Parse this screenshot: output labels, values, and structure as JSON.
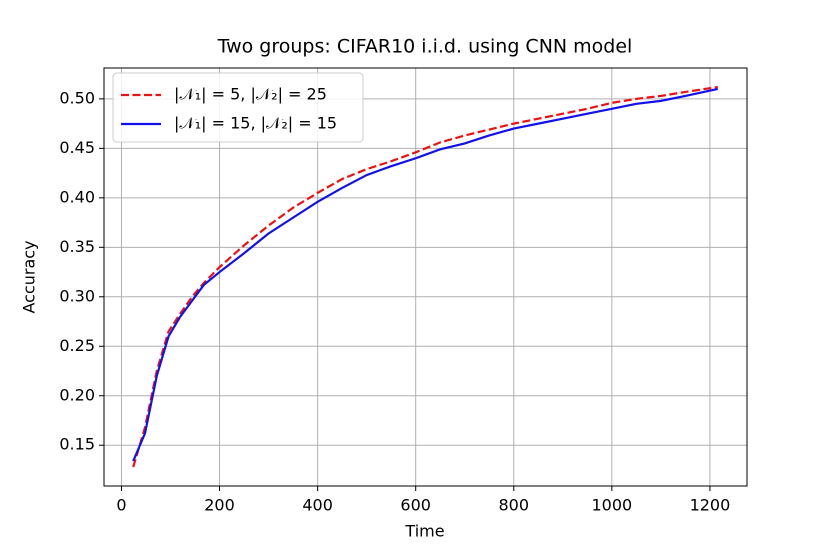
{
  "chart_data": {
    "type": "line",
    "title": "Two groups: CIFAR10 i.i.d. using CNN model",
    "xlabel": "Time",
    "ylabel": "Accuracy",
    "x": [
      24,
      48,
      72,
      96,
      120,
      144,
      168,
      200,
      250,
      300,
      350,
      400,
      450,
      500,
      550,
      600,
      650,
      700,
      750,
      800,
      850,
      900,
      950,
      1000,
      1050,
      1100,
      1150,
      1216
    ],
    "series": [
      {
        "name": "|𝒩₁| = 5, |𝒩₂| = 25",
        "color": "#ee1111",
        "dash": true,
        "values": [
          0.128,
          0.168,
          0.225,
          0.265,
          0.283,
          0.3,
          0.314,
          0.33,
          0.352,
          0.372,
          0.39,
          0.405,
          0.419,
          0.429,
          0.437,
          0.446,
          0.456,
          0.463,
          0.469,
          0.475,
          0.48,
          0.485,
          0.49,
          0.496,
          0.5,
          0.503,
          0.507,
          0.512
        ]
      },
      {
        "name": "|𝒩₁| = 15, |𝒩₂| = 15",
        "color": "#1111ee",
        "dash": false,
        "values": [
          0.134,
          0.162,
          0.22,
          0.26,
          0.28,
          0.296,
          0.312,
          0.325,
          0.344,
          0.364,
          0.38,
          0.396,
          0.41,
          0.423,
          0.432,
          0.44,
          0.449,
          0.455,
          0.463,
          0.47,
          0.475,
          0.48,
          0.485,
          0.49,
          0.495,
          0.498,
          0.503,
          0.51
        ]
      }
    ],
    "xlim": [
      -35.6,
      1275.6
    ],
    "xticks": [
      0,
      200,
      400,
      600,
      800,
      1000,
      1200
    ],
    "ylim": [
      0.1088,
      0.5312
    ],
    "yticks": [
      {
        "value": 0.15,
        "label": "0.15"
      },
      {
        "value": 0.2,
        "label": "0.20"
      },
      {
        "value": 0.25,
        "label": "0.25"
      },
      {
        "value": 0.3,
        "label": "0.30"
      },
      {
        "value": 0.35,
        "label": "0.35"
      },
      {
        "value": 0.4,
        "label": "0.40"
      },
      {
        "value": 0.45,
        "label": "0.45"
      },
      {
        "value": 0.5,
        "label": "0.50"
      }
    ],
    "grid": true,
    "legend": "upper left"
  }
}
